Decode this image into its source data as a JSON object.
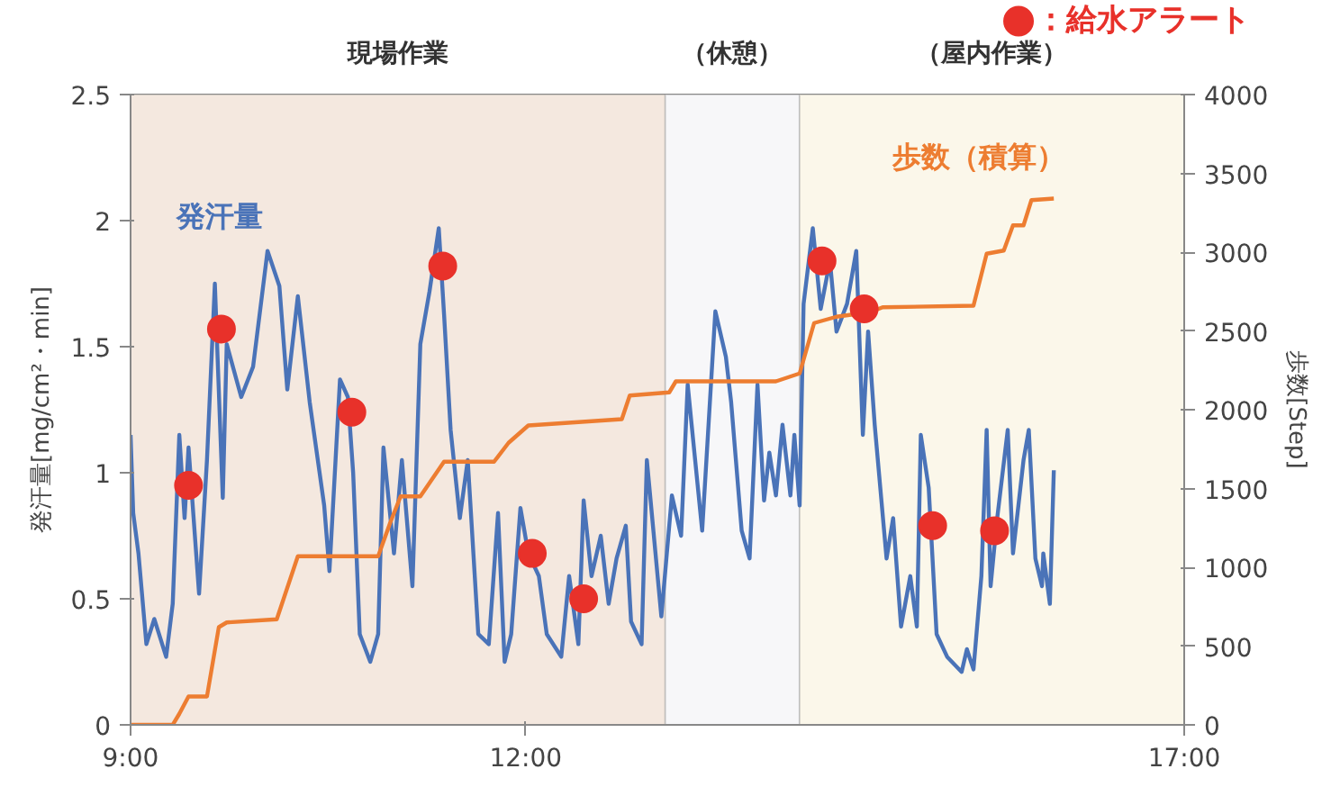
{
  "chart_data": {
    "type": "line",
    "xlim": [
      9,
      17
    ],
    "xticks": [
      {
        "value": 9,
        "label": "9:00"
      },
      {
        "value": 12,
        "label": "12:00"
      },
      {
        "value": 17,
        "label": "17:00"
      }
    ],
    "ylim": [
      0,
      2.5
    ],
    "yticks": [
      0,
      0.5,
      1,
      1.5,
      2,
      2.5
    ],
    "y2lim": [
      0,
      4000
    ],
    "y2ticks": [
      0,
      500,
      1000,
      1500,
      2000,
      2500,
      3000,
      3500,
      4000
    ],
    "ylabel": "発汗量[mg/cm²・min]",
    "y2label": "歩数[Step]",
    "legend": "top right",
    "bands": [
      {
        "axis": "x",
        "from": 9,
        "to": 13.06,
        "label": "現場作業",
        "color": "#f4e8df"
      },
      {
        "axis": "x",
        "from": 13.06,
        "to": 14.08,
        "label": "（休憩）",
        "color": "#f7f7f9"
      },
      {
        "axis": "x",
        "from": 14.08,
        "to": 17,
        "label": "（屋内作業）",
        "color": "#fbf7ea"
      }
    ],
    "series": [
      {
        "name": "発汗量",
        "color": "#4a73b8",
        "x": [
          9.0,
          9.02,
          9.06,
          9.12,
          9.18,
          9.27,
          9.32,
          9.37,
          9.41,
          9.44,
          9.52,
          9.58,
          9.64,
          9.7,
          9.73,
          9.84,
          9.93,
          10.04,
          10.13,
          10.19,
          10.27,
          10.36,
          10.47,
          10.51,
          10.59,
          10.65,
          10.69,
          10.74,
          10.82,
          10.88,
          10.92,
          11.0,
          11.06,
          11.14,
          11.2,
          11.27,
          11.34,
          11.38,
          11.43,
          11.5,
          11.56,
          11.64,
          11.72,
          11.79,
          11.84,
          11.89,
          11.96,
          12.02,
          12.1,
          12.16,
          12.27,
          12.33,
          12.4,
          12.44,
          12.5,
          12.57,
          12.63,
          12.69,
          12.76,
          12.8,
          12.88,
          12.92,
          13.03,
          13.11,
          13.18,
          13.23,
          13.26,
          13.34,
          13.44,
          13.52,
          13.56,
          13.64,
          13.7,
          13.76,
          13.81,
          13.85,
          13.9,
          13.95,
          14.01,
          14.04,
          14.08,
          14.11,
          14.18,
          14.24,
          14.31,
          14.36,
          14.44,
          14.51,
          14.56,
          14.6,
          14.65,
          14.74,
          14.79,
          14.85,
          14.92,
          14.97,
          15.0,
          15.06,
          15.12,
          15.2,
          15.31,
          15.35,
          15.4,
          15.46,
          15.5,
          15.53,
          15.58,
          15.66,
          15.7,
          15.78,
          15.82,
          15.87,
          15.92,
          15.93,
          15.98,
          16.01
        ],
        "values": [
          1.15,
          0.84,
          0.68,
          0.32,
          0.42,
          0.27,
          0.48,
          1.15,
          0.82,
          1.1,
          0.52,
          1.05,
          1.75,
          0.9,
          1.51,
          1.3,
          1.42,
          1.88,
          1.74,
          1.33,
          1.7,
          1.28,
          0.87,
          0.61,
          1.37,
          1.3,
          1.0,
          0.36,
          0.25,
          0.36,
          1.1,
          0.68,
          1.05,
          0.55,
          1.51,
          1.72,
          1.97,
          1.63,
          1.17,
          0.82,
          1.05,
          0.36,
          0.32,
          0.84,
          0.25,
          0.36,
          0.86,
          0.68,
          0.59,
          0.36,
          0.27,
          0.59,
          0.32,
          0.89,
          0.59,
          0.75,
          0.48,
          0.66,
          0.79,
          0.41,
          0.32,
          1.05,
          0.43,
          0.91,
          0.75,
          1.35,
          1.19,
          0.77,
          1.64,
          1.46,
          1.28,
          0.77,
          0.66,
          1.35,
          0.89,
          1.08,
          0.91,
          1.19,
          0.91,
          1.15,
          0.87,
          1.67,
          1.97,
          1.65,
          1.84,
          1.56,
          1.67,
          1.88,
          1.15,
          1.56,
          1.19,
          0.66,
          0.82,
          0.39,
          0.59,
          0.39,
          1.15,
          0.94,
          0.36,
          0.27,
          0.21,
          0.3,
          0.22,
          0.59,
          1.17,
          0.55,
          0.82,
          1.17,
          0.68,
          1.05,
          1.17,
          0.66,
          0.55,
          0.68,
          0.48,
          1.01
        ]
      },
      {
        "name": "歩数（積算）",
        "axis": "y2",
        "color": "#ed7d31",
        "x": [
          9.0,
          9.32,
          9.37,
          9.44,
          9.58,
          9.67,
          9.73,
          10.11,
          10.27,
          10.88,
          10.97,
          11.05,
          11.2,
          11.38,
          11.76,
          11.87,
          12.02,
          12.73,
          12.79,
          13.09,
          13.14,
          13.44,
          13.9,
          14.08,
          14.19,
          14.36,
          14.62,
          14.71,
          15.4,
          15.5,
          15.63,
          15.7,
          15.78,
          15.84,
          16.01
        ],
        "values": [
          0,
          0,
          70,
          180,
          180,
          620,
          650,
          670,
          1070,
          1070,
          1280,
          1450,
          1450,
          1670,
          1670,
          1790,
          1900,
          1940,
          2090,
          2110,
          2180,
          2180,
          2180,
          2230,
          2550,
          2590,
          2620,
          2650,
          2660,
          2990,
          3010,
          3170,
          3170,
          3330,
          3340
        ]
      },
      {
        "name": "：給水アラート",
        "type": "scatter",
        "marker": "circle",
        "color": "#e8312a",
        "x": [
          9.44,
          9.69,
          10.68,
          11.37,
          12.05,
          12.44,
          14.25,
          14.57,
          15.09,
          15.56
        ],
        "values": [
          0.95,
          1.57,
          1.24,
          1.82,
          0.68,
          0.5,
          1.84,
          1.65,
          0.79,
          0.77
        ]
      }
    ]
  }
}
